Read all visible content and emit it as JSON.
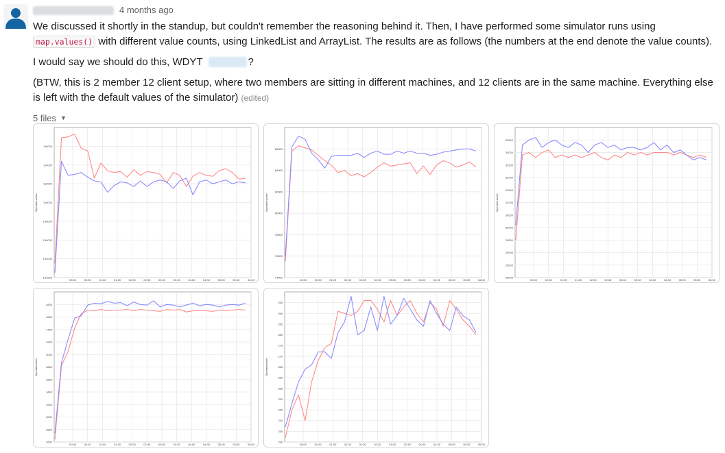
{
  "message": {
    "timestamp": "4 months ago",
    "para1_part1": "We discussed it shortly in the standup, but couldn't remember the reasoning behind it. Then, I have performed some simulator runs using ",
    "code": "map.values()",
    "para1_part2": " with different value counts, using LinkedList and ArrayList. The results are as follows (the numbers at the end denote the value counts).",
    "para2_part1": "I would say we should do this, WDYT ",
    "para2_part2": "?",
    "para3": "(BTW, this is 2 member 12 client setup, where two members are sitting in different machines, and 12 clients are in the same machine. Everything else is left with the default values of the simulator)",
    "edited": "(edited)"
  },
  "files": {
    "label": "5 files",
    "caret": "▼",
    "colors": {
      "red": "#ff8a8a",
      "blue": "#8b8bff",
      "grid": "#e6e6e6",
      "axis": "#999999",
      "text": "#444444"
    },
    "charts": [
      {
        "chart_data": {
          "type": "line",
          "ylabel": "Operations/sec",
          "ylim": [
            102000,
            118000
          ],
          "y_ticks": [
            "102000",
            "104000",
            "106000",
            "108000",
            "110000",
            "112000",
            "114000",
            "116000"
          ],
          "x_ticks": [
            "00:00",
            "00:30",
            "01:00",
            "01:30",
            "02:00",
            "02:30",
            "03:00",
            "03:30",
            "04:00",
            "04:30",
            "05:00",
            "05:30",
            "06:00"
          ],
          "series": [
            {
              "color": "red",
              "values": [
                103500,
                116900,
                117000,
                117300,
                115800,
                115500,
                112600,
                114200,
                113400,
                113200,
                113300,
                112700,
                113500,
                112900,
                113300,
                113200,
                113000,
                112100,
                113200,
                112900,
                111700,
                112800,
                113200,
                112900,
                112800,
                113400,
                113600,
                113200,
                112500,
                112600
              ]
            },
            {
              "color": "blue",
              "values": [
                102500,
                114400,
                112900,
                113000,
                113200,
                112700,
                112300,
                112200,
                111100,
                111800,
                112200,
                112100,
                111700,
                112300,
                111700,
                112200,
                112400,
                112200,
                111500,
                112300,
                112600,
                110800,
                112200,
                112400,
                112000,
                112200,
                112400,
                112000,
                112200,
                112100
              ]
            }
          ]
        }
      },
      {
        "chart_data": {
          "type": "line",
          "ylabel": "Operations/sec",
          "ylim": [
            74000,
            88000
          ],
          "y_ticks": [
            "74000",
            "76000",
            "78000",
            "80000",
            "82000",
            "84000",
            "86000"
          ],
          "x_ticks": [
            "00:00",
            "00:30",
            "01:00",
            "01:30",
            "02:00",
            "02:30",
            "03:00",
            "03:30",
            "04:00",
            "04:30",
            "05:00",
            "05:30",
            "06:00"
          ],
          "series": [
            {
              "color": "red",
              "values": [
                75500,
                85800,
                86300,
                86100,
                85900,
                85400,
                84900,
                84500,
                83800,
                84000,
                83500,
                83700,
                83400,
                83800,
                84300,
                84700,
                84400,
                84500,
                84600,
                84700,
                83700,
                84400,
                83600,
                84500,
                84900,
                84700,
                84300,
                84500,
                84800,
                84300
              ]
            },
            {
              "color": "blue",
              "values": [
                76000,
                86200,
                87200,
                86900,
                85600,
                85000,
                84200,
                85300,
                85400,
                85400,
                85400,
                85600,
                85200,
                85600,
                85800,
                85500,
                85500,
                85800,
                85600,
                85800,
                85600,
                85600,
                85400,
                85500,
                85700,
                85800,
                85900,
                86000,
                86000,
                85800
              ]
            }
          ]
        }
      },
      {
        "chart_data": {
          "type": "line",
          "ylabel": "Operations/sec",
          "ylim": [
            28000,
            34000
          ],
          "y_ticks": [
            "28000",
            "28500",
            "29000",
            "29500",
            "30000",
            "30500",
            "31000",
            "31500",
            "32000",
            "32500",
            "33000",
            "33500"
          ],
          "x_ticks": [
            "00:00",
            "00:30",
            "01:00",
            "01:30",
            "02:00",
            "02:30",
            "03:00",
            "03:30",
            "04:00",
            "04:30",
            "05:00",
            "05:30",
            "06:00"
          ],
          "series": [
            {
              "color": "red",
              "values": [
                29500,
                32900,
                33000,
                32800,
                33000,
                33100,
                32800,
                32900,
                32800,
                32900,
                32800,
                32900,
                33000,
                32800,
                32700,
                32900,
                32800,
                33000,
                32900,
                33000,
                32900,
                33000,
                33000,
                33000,
                32900,
                33000,
                32900,
                32800,
                32900,
                32800
              ]
            },
            {
              "color": "blue",
              "values": [
                30100,
                33300,
                33500,
                33600,
                33200,
                33400,
                33500,
                33300,
                33200,
                33400,
                33300,
                33000,
                33300,
                33400,
                33200,
                33300,
                33100,
                33200,
                33200,
                33100,
                33200,
                33400,
                33100,
                33300,
                33000,
                33100,
                32900,
                32700,
                32800,
                32700
              ]
            }
          ]
        }
      },
      {
        "chart_data": {
          "type": "line",
          "ylabel": "Operations/sec",
          "ylim": [
            2600,
            5000
          ],
          "y_ticks": [
            "2600",
            "2800",
            "3000",
            "3200",
            "3400",
            "3600",
            "3800",
            "4000",
            "4200",
            "4400",
            "4600",
            "4800"
          ],
          "x_ticks": [
            "00:00",
            "00:30",
            "01:00",
            "01:30",
            "02:00",
            "02:30",
            "03:00",
            "03:30",
            "04:00",
            "04:30",
            "05:00",
            "05:30",
            "06:00"
          ],
          "series": [
            {
              "color": "red",
              "values": [
                2640,
                3820,
                4050,
                4420,
                4650,
                4710,
                4700,
                4720,
                4700,
                4710,
                4710,
                4720,
                4700,
                4720,
                4710,
                4700,
                4690,
                4720,
                4710,
                4720,
                4680,
                4700,
                4700,
                4700,
                4690,
                4710,
                4700,
                4710,
                4720,
                4710
              ]
            },
            {
              "color": "blue",
              "values": [
                2740,
                3870,
                4240,
                4580,
                4620,
                4790,
                4820,
                4810,
                4850,
                4820,
                4830,
                4780,
                4840,
                4800,
                4790,
                4860,
                4760,
                4800,
                4790,
                4760,
                4790,
                4820,
                4780,
                4800,
                4790,
                4760,
                4790,
                4800,
                4790,
                4820
              ]
            }
          ]
        }
      },
      {
        "chart_data": {
          "type": "line",
          "ylabel": "Operations/sec",
          "ylim": [
            230,
            300
          ],
          "y_ticks": [
            "230",
            "235",
            "240",
            "245",
            "250",
            "255",
            "260",
            "265",
            "270",
            "275",
            "280",
            "285",
            "290",
            "295"
          ],
          "x_ticks": [
            "00:00",
            "00:30",
            "01:00",
            "01:30",
            "02:00",
            "02:30",
            "03:00",
            "03:30",
            "04:00",
            "04:30",
            "05:00",
            "05:30",
            "06:00"
          ],
          "series": [
            {
              "color": "red",
              "values": [
                232,
                245,
                252,
                240,
                258,
                268,
                274,
                276,
                291,
                290,
                289,
                291,
                296,
                296,
                292,
                286,
                296,
                289,
                293,
                296,
                290,
                286,
                295,
                292,
                284,
                296,
                292,
                287,
                284,
                280
              ]
            },
            {
              "color": "blue",
              "values": [
                237,
                248,
                258,
                264,
                266,
                272,
                272,
                269,
                281,
                286,
                298,
                280,
                282,
                293,
                282,
                298,
                285,
                289,
                297,
                292,
                287,
                284,
                296,
                290,
                285,
                282,
                293,
                289,
                287,
                281
              ]
            }
          ]
        }
      }
    ]
  }
}
